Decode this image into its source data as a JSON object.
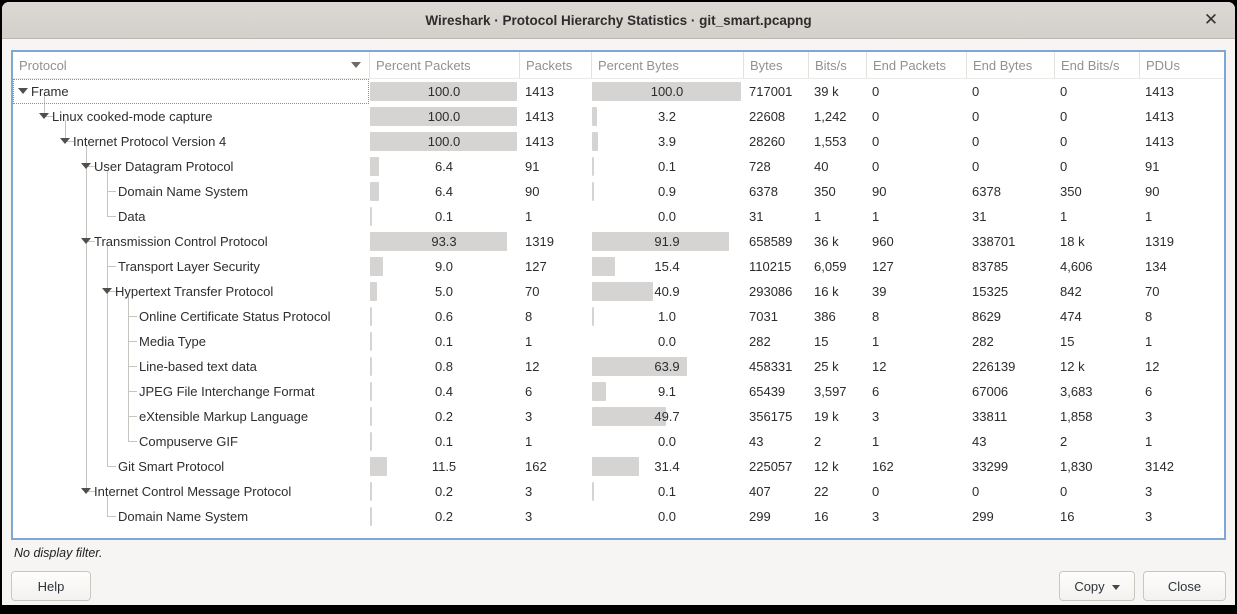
{
  "window": {
    "title": "Wireshark · Protocol Hierarchy Statistics · git_smart.pcapng",
    "close_icon": "✕"
  },
  "table": {
    "columns": [
      "Protocol",
      "Percent Packets",
      "Packets",
      "Percent Bytes",
      "Bytes",
      "Bits/s",
      "End Packets",
      "End Bytes",
      "End Bits/s",
      "PDUs"
    ],
    "rows": [
      {
        "name": "Frame",
        "level": 0,
        "expand": true,
        "conn": "none",
        "guides": [],
        "stub": true,
        "focus": true,
        "pct_packets": "100.0",
        "packets": "1413",
        "pct_bytes": "100.0",
        "bytes": "717001",
        "bits_s": "39 k",
        "end_packets": "0",
        "end_bytes": "0",
        "end_bits_s": "0",
        "pdus": "1413"
      },
      {
        "name": "Linux cooked-mode capture",
        "level": 1,
        "expand": true,
        "conn": "elbow",
        "guides": [],
        "stub": true,
        "focus": false,
        "pct_packets": "100.0",
        "packets": "1413",
        "pct_bytes": "3.2",
        "bytes": "22608",
        "bits_s": "1,242",
        "end_packets": "0",
        "end_bytes": "0",
        "end_bits_s": "0",
        "pdus": "1413"
      },
      {
        "name": "Internet Protocol Version 4",
        "level": 2,
        "expand": true,
        "conn": "elbow",
        "guides": [],
        "stub": true,
        "focus": false,
        "pct_packets": "100.0",
        "packets": "1413",
        "pct_bytes": "3.9",
        "bytes": "28260",
        "bits_s": "1,553",
        "end_packets": "0",
        "end_bytes": "0",
        "end_bits_s": "0",
        "pdus": "1413"
      },
      {
        "name": "User Datagram Protocol",
        "level": 3,
        "expand": true,
        "conn": "tee",
        "guides": [],
        "stub": true,
        "focus": false,
        "pct_packets": "6.4",
        "packets": "91",
        "pct_bytes": "0.1",
        "bytes": "728",
        "bits_s": "40",
        "end_packets": "0",
        "end_bytes": "0",
        "end_bits_s": "0",
        "pdus": "91"
      },
      {
        "name": "Domain Name System",
        "level": 4,
        "expand": false,
        "conn": "tee",
        "guides": [
          3
        ],
        "stub": false,
        "focus": false,
        "pct_packets": "6.4",
        "packets": "90",
        "pct_bytes": "0.9",
        "bytes": "6378",
        "bits_s": "350",
        "end_packets": "90",
        "end_bytes": "6378",
        "end_bits_s": "350",
        "pdus": "90"
      },
      {
        "name": "Data",
        "level": 4,
        "expand": false,
        "conn": "elbow",
        "guides": [
          3
        ],
        "stub": false,
        "focus": false,
        "pct_packets": "0.1",
        "packets": "1",
        "pct_bytes": "0.0",
        "bytes": "31",
        "bits_s": "1",
        "end_packets": "1",
        "end_bytes": "31",
        "end_bits_s": "1",
        "pdus": "1"
      },
      {
        "name": "Transmission Control Protocol",
        "level": 3,
        "expand": true,
        "conn": "tee",
        "guides": [],
        "stub": true,
        "focus": false,
        "pct_packets": "93.3",
        "packets": "1319",
        "pct_bytes": "91.9",
        "bytes": "658589",
        "bits_s": "36 k",
        "end_packets": "960",
        "end_bytes": "338701",
        "end_bits_s": "18 k",
        "pdus": "1319"
      },
      {
        "name": "Transport Layer Security",
        "level": 4,
        "expand": false,
        "conn": "tee",
        "guides": [
          3
        ],
        "stub": false,
        "focus": false,
        "pct_packets": "9.0",
        "packets": "127",
        "pct_bytes": "15.4",
        "bytes": "110215",
        "bits_s": "6,059",
        "end_packets": "127",
        "end_bytes": "83785",
        "end_bits_s": "4,606",
        "pdus": "134"
      },
      {
        "name": "Hypertext Transfer Protocol",
        "level": 4,
        "expand": true,
        "conn": "tee",
        "guides": [
          3
        ],
        "stub": true,
        "focus": false,
        "pct_packets": "5.0",
        "packets": "70",
        "pct_bytes": "40.9",
        "bytes": "293086",
        "bits_s": "16 k",
        "end_packets": "39",
        "end_bytes": "15325",
        "end_bits_s": "842",
        "pdus": "70"
      },
      {
        "name": "Online Certificate Status Protocol",
        "level": 5,
        "expand": false,
        "conn": "tee",
        "guides": [
          3,
          4
        ],
        "stub": false,
        "focus": false,
        "pct_packets": "0.6",
        "packets": "8",
        "pct_bytes": "1.0",
        "bytes": "7031",
        "bits_s": "386",
        "end_packets": "8",
        "end_bytes": "8629",
        "end_bits_s": "474",
        "pdus": "8"
      },
      {
        "name": "Media Type",
        "level": 5,
        "expand": false,
        "conn": "tee",
        "guides": [
          3,
          4
        ],
        "stub": false,
        "focus": false,
        "pct_packets": "0.1",
        "packets": "1",
        "pct_bytes": "0.0",
        "bytes": "282",
        "bits_s": "15",
        "end_packets": "1",
        "end_bytes": "282",
        "end_bits_s": "15",
        "pdus": "1"
      },
      {
        "name": "Line-based text data",
        "level": 5,
        "expand": false,
        "conn": "tee",
        "guides": [
          3,
          4
        ],
        "stub": false,
        "focus": false,
        "pct_packets": "0.8",
        "packets": "12",
        "pct_bytes": "63.9",
        "bytes": "458331",
        "bits_s": "25 k",
        "end_packets": "12",
        "end_bytes": "226139",
        "end_bits_s": "12 k",
        "pdus": "12"
      },
      {
        "name": "JPEG File Interchange Format",
        "level": 5,
        "expand": false,
        "conn": "tee",
        "guides": [
          3,
          4
        ],
        "stub": false,
        "focus": false,
        "pct_packets": "0.4",
        "packets": "6",
        "pct_bytes": "9.1",
        "bytes": "65439",
        "bits_s": "3,597",
        "end_packets": "6",
        "end_bytes": "67006",
        "end_bits_s": "3,683",
        "pdus": "6"
      },
      {
        "name": "eXtensible Markup Language",
        "level": 5,
        "expand": false,
        "conn": "tee",
        "guides": [
          3,
          4
        ],
        "stub": false,
        "focus": false,
        "pct_packets": "0.2",
        "packets": "3",
        "pct_bytes": "49.7",
        "bytes": "356175",
        "bits_s": "19 k",
        "end_packets": "3",
        "end_bytes": "33811",
        "end_bits_s": "1,858",
        "pdus": "3"
      },
      {
        "name": "Compuserve GIF",
        "level": 5,
        "expand": false,
        "conn": "elbow",
        "guides": [
          3,
          4
        ],
        "stub": false,
        "focus": false,
        "pct_packets": "0.1",
        "packets": "1",
        "pct_bytes": "0.0",
        "bytes": "43",
        "bits_s": "2",
        "end_packets": "1",
        "end_bytes": "43",
        "end_bits_s": "2",
        "pdus": "1"
      },
      {
        "name": "Git Smart Protocol",
        "level": 4,
        "expand": false,
        "conn": "elbow",
        "guides": [
          3
        ],
        "stub": false,
        "focus": false,
        "pct_packets": "11.5",
        "packets": "162",
        "pct_bytes": "31.4",
        "bytes": "225057",
        "bits_s": "12 k",
        "end_packets": "162",
        "end_bytes": "33299",
        "end_bits_s": "1,830",
        "pdus": "3142"
      },
      {
        "name": "Internet Control Message Protocol",
        "level": 3,
        "expand": true,
        "conn": "elbow",
        "guides": [],
        "stub": true,
        "focus": false,
        "pct_packets": "0.2",
        "packets": "3",
        "pct_bytes": "0.1",
        "bytes": "407",
        "bits_s": "22",
        "end_packets": "0",
        "end_bytes": "0",
        "end_bits_s": "0",
        "pdus": "3"
      },
      {
        "name": "Domain Name System",
        "level": 4,
        "expand": false,
        "conn": "elbow",
        "guides": [],
        "stub": false,
        "focus": false,
        "pct_packets": "0.2",
        "packets": "3",
        "pct_bytes": "0.0",
        "bytes": "299",
        "bits_s": "16",
        "end_packets": "3",
        "end_bytes": "299",
        "end_bits_s": "16",
        "pdus": "3"
      }
    ]
  },
  "status": "No display filter.",
  "buttons": {
    "help": "Help",
    "copy": "Copy",
    "close": "Close"
  }
}
